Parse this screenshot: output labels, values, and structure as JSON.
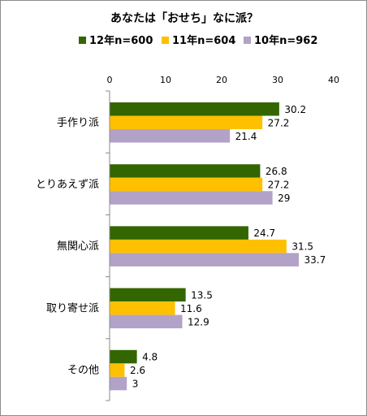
{
  "chart_data": {
    "type": "bar",
    "orientation": "horizontal",
    "title": "あなたは「おせち」なに派？",
    "categories": [
      "手作り派",
      "とりあえず派",
      "無関心派",
      "取り寄せ派",
      "その他"
    ],
    "series": [
      {
        "name": "12年n=600",
        "color": "#336600",
        "values": [
          30.2,
          26.8,
          24.7,
          13.5,
          4.8
        ]
      },
      {
        "name": "11年n=604",
        "color": "#ffc000",
        "values": [
          27.2,
          27.2,
          31.5,
          11.6,
          2.6
        ]
      },
      {
        "name": "10年n=962",
        "color": "#b3a2c7",
        "values": [
          21.4,
          29,
          33.7,
          12.9,
          3
        ]
      }
    ],
    "xlim": [
      0,
      40
    ],
    "xticks": [
      "0",
      "10",
      "20",
      "30",
      "40"
    ],
    "data_labels": [
      [
        "30.2",
        "27.2",
        "21.4"
      ],
      [
        "26.8",
        "27.2",
        "29"
      ],
      [
        "24.7",
        "31.5",
        "33.7"
      ],
      [
        "13.5",
        "11.6",
        "12.9"
      ],
      [
        "4.8",
        "2.6",
        "3"
      ]
    ],
    "legend_position": "top",
    "grid": false
  }
}
